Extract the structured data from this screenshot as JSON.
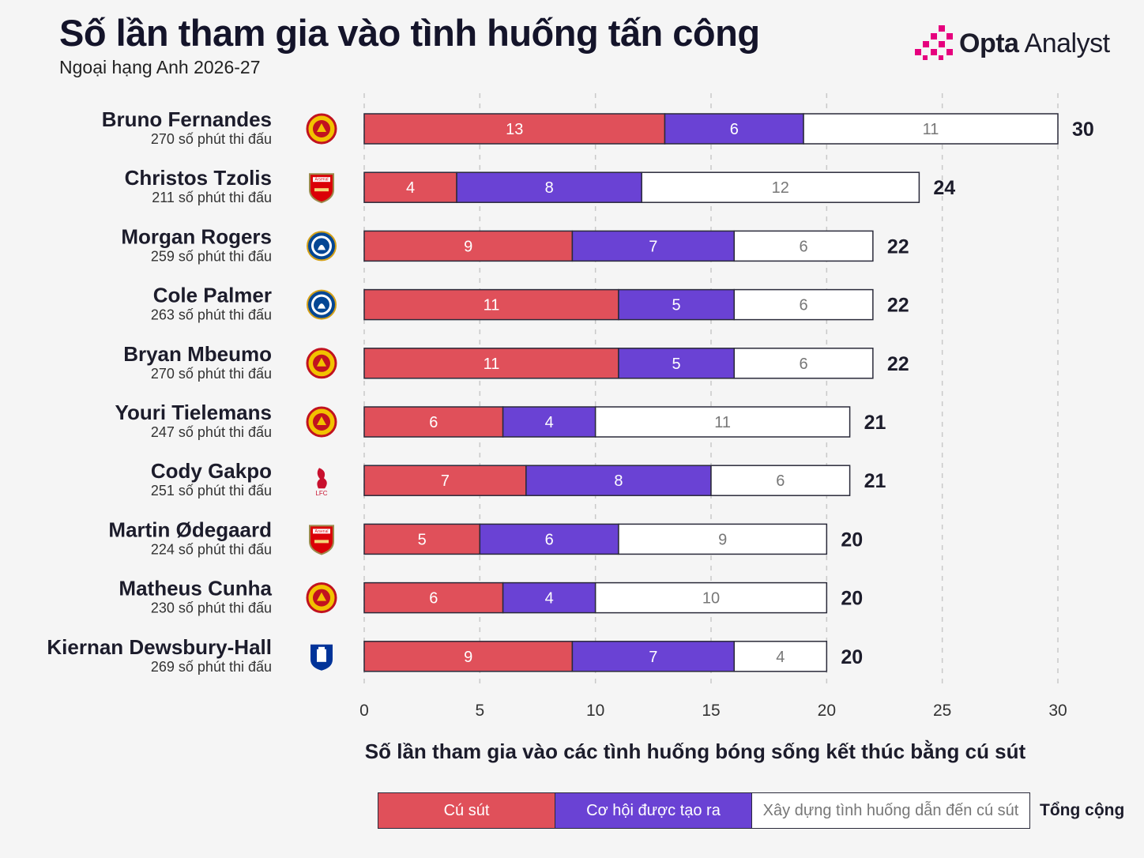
{
  "header": {
    "title": "Số lần tham gia vào tình huống tấn công",
    "subtitle": "Ngoại hạng Anh 2026-27",
    "brand_bold": "Opta",
    "brand_light": " Analyst"
  },
  "colors": {
    "shots": "#e0505a",
    "chances": "#6a42d4",
    "buildup": "#ffffff",
    "accent": "#e6007e"
  },
  "legend": {
    "shots": "Cú sút",
    "chances": "Cơ hội được tạo ra",
    "buildup": "Xây dựng tình huống dẫn đến cú sút",
    "total": "Tổng cộng"
  },
  "chart_data": {
    "type": "bar",
    "orientation": "horizontal",
    "stacked": true,
    "xlabel": "Số lần tham gia vào các tình huống bóng sống kết thúc bằng cú sút",
    "xlim": [
      0,
      30
    ],
    "xticks": [
      0,
      5,
      10,
      15,
      20,
      25,
      30
    ],
    "grid": true,
    "legend_position": "bottom",
    "categories": [
      "Bruno Fernandes",
      "Christos Tzolis",
      "Morgan Rogers",
      "Cole Palmer",
      "Bryan Mbeumo",
      "Youri Tielemans",
      "Cody Gakpo",
      "Martin Ødegaard",
      "Matheus Cunha",
      "Kiernan Dewsbury-Hall"
    ],
    "minutes": [
      "270 số phút thi đấu",
      "211 số phút thi đấu",
      "259 số phút thi đấu",
      "263 số phút thi đấu",
      "270 số phút thi đấu",
      "247 số phút thi đấu",
      "251 số phút thi đấu",
      "224 số phút thi đấu",
      "230 số phút thi đấu",
      "269 số phút thi đấu"
    ],
    "clubs": [
      "man-utd",
      "arsenal",
      "chelsea",
      "chelsea",
      "man-utd",
      "man-utd",
      "liverpool",
      "arsenal",
      "man-utd",
      "everton"
    ],
    "series": [
      {
        "name": "Cú sút",
        "values": [
          13,
          4,
          9,
          11,
          11,
          6,
          7,
          5,
          6,
          9
        ]
      },
      {
        "name": "Cơ hội được tạo ra",
        "values": [
          6,
          8,
          7,
          5,
          5,
          4,
          8,
          6,
          4,
          7
        ]
      },
      {
        "name": "Xây dựng tình huống dẫn đến cú sút",
        "values": [
          11,
          12,
          6,
          6,
          6,
          11,
          6,
          9,
          10,
          4
        ]
      }
    ],
    "totals": [
      30,
      24,
      22,
      22,
      22,
      21,
      21,
      20,
      20,
      20
    ],
    "club_badge_text": {
      "arsenal": "Arsenal",
      "liverpool": "LFC"
    }
  }
}
